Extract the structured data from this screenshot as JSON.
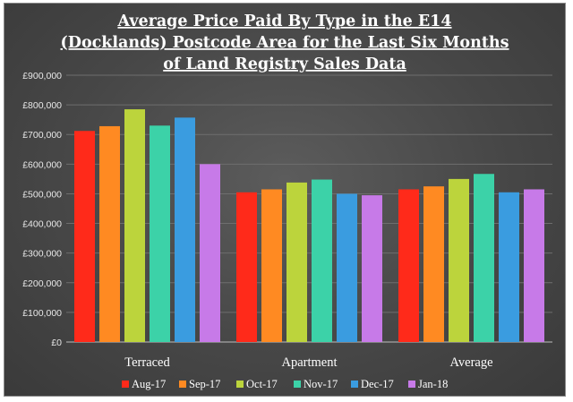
{
  "chart_data": {
    "type": "bar",
    "title_lines": [
      "Average Price Paid By Type in the E14",
      "(Docklands) Postcode Area for the Last Six Months",
      "of Land Registry Sales Data"
    ],
    "categories": [
      "Terraced",
      "Apartment",
      "Average"
    ],
    "y_ticks": [
      "£0",
      "£100,000",
      "£200,000",
      "£300,000",
      "£400,000",
      "£500,000",
      "£600,000",
      "£700,000",
      "£800,000",
      "£900,000"
    ],
    "ylim": [
      0,
      900000
    ],
    "grid": true,
    "legend_position": "bottom",
    "series": [
      {
        "name": "Aug-17",
        "color": "#ff2a1a",
        "values": [
          712000,
          505000,
          515000
        ]
      },
      {
        "name": "Sep-17",
        "color": "#ff8a22",
        "values": [
          728000,
          515000,
          525000
        ]
      },
      {
        "name": "Oct-17",
        "color": "#bcd43c",
        "values": [
          785000,
          538000,
          550000
        ]
      },
      {
        "name": "Nov-17",
        "color": "#3cd2a8",
        "values": [
          730000,
          548000,
          567000
        ]
      },
      {
        "name": "Dec-17",
        "color": "#3a9ce0",
        "values": [
          757000,
          500000,
          505000
        ]
      },
      {
        "name": "Jan-18",
        "color": "#c77ae8",
        "values": [
          600000,
          495000,
          515000
        ]
      }
    ]
  }
}
